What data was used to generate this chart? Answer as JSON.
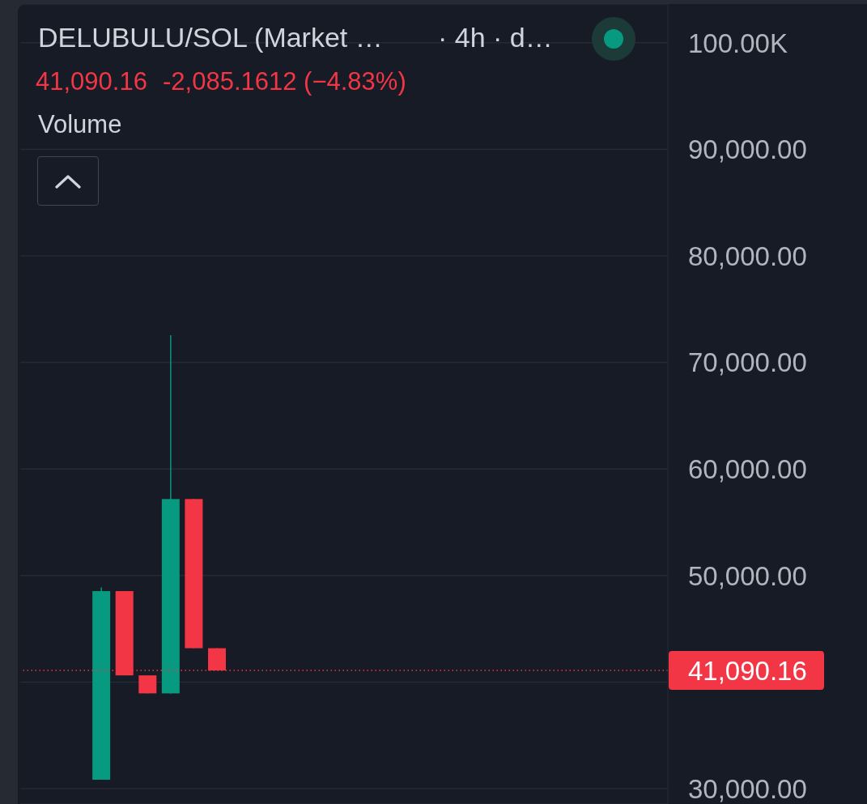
{
  "chart_data": {
    "type": "candlestick",
    "title": "DELUBULU/SOL (Market …",
    "annotations": [
      "· 4h · d…",
      "41,090.16",
      "-2,085.1612 (−4.83%)",
      "Volume"
    ],
    "categories": [
      null,
      null,
      null,
      null,
      null,
      null,
      null,
      null,
      null,
      null,
      null,
      null,
      null,
      null,
      null,
      null,
      null,
      null,
      null,
      null,
      null,
      null,
      null,
      null,
      null,
      null,
      null,
      null
    ],
    "ohlc": [
      null,
      null,
      null,
      [
        30840,
        48880,
        30840,
        48540
      ],
      [
        48540,
        48540,
        40630,
        40630
      ],
      [
        40630,
        40630,
        38940,
        38940
      ],
      [
        38940,
        72550,
        38940,
        57180
      ],
      [
        57180,
        57180,
        43180,
        43180
      ],
      [
        43180,
        43180,
        41090.16,
        41090.16
      ],
      null,
      null,
      null,
      null,
      null,
      null,
      null,
      null,
      null,
      null,
      null,
      null,
      null,
      null,
      null,
      null,
      null,
      null,
      null
    ],
    "colors": [
      null,
      null,
      null,
      "#089981",
      "#f23645",
      "#f23645",
      "#089981",
      "#f23645",
      "#f23645",
      null,
      null,
      null,
      null,
      null,
      null,
      null,
      null,
      null,
      null,
      null,
      null,
      null,
      null,
      null,
      null,
      null,
      null,
      null
    ],
    "ylim": [
      28560,
      103630
    ],
    "yticks": [
      {
        "value": 30000,
        "label": "30,000.00"
      },
      {
        "value": 40000,
        "label": null
      },
      {
        "value": 50000,
        "label": "50,000.00"
      },
      {
        "value": 60000,
        "label": "60,000.00"
      },
      {
        "value": 70000,
        "label": "70,000.00"
      },
      {
        "value": 80000,
        "label": "80,000.00"
      },
      {
        "value": 90000,
        "label": "90,000.00"
      },
      {
        "value": 100000,
        "label": "100.00K"
      }
    ],
    "grid": "y",
    "tick_labels": "y",
    "ref_lines": [
      {
        "axis": "y",
        "value": 41090.16,
        "label": "41,090.16",
        "color": "#f23645",
        "line_style": "dotted"
      }
    ]
  }
}
